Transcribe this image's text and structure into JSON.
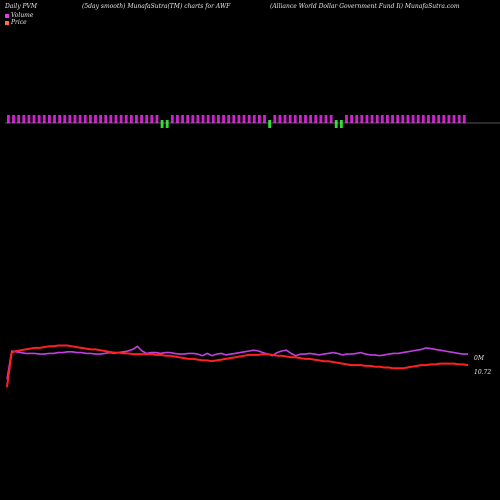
{
  "header": {
    "left": "Daily PVM",
    "middle": "(5day smooth) MunafaSutra(TM) charts for AWF",
    "right": "(Alliance World Dollar Government Fund Ii) MunafaSutra.com"
  },
  "legend": {
    "items": [
      {
        "label": "Volume",
        "color": "#e040e0"
      },
      {
        "label": "Price",
        "color": "#ff6a5a"
      }
    ]
  },
  "colors": {
    "up_bar": "#d020d0",
    "down_bar": "#30e030",
    "volume_line": "#c040e0",
    "price_line": "#ff2020",
    "baseline": "#aaaaaa"
  },
  "chart_data": {
    "type": "line",
    "title": "",
    "xlabel": "",
    "ylabel": "",
    "bars": {
      "direction": [
        1,
        1,
        1,
        1,
        1,
        1,
        1,
        1,
        1,
        1,
        1,
        1,
        1,
        1,
        1,
        1,
        1,
        1,
        1,
        1,
        1,
        1,
        1,
        1,
        1,
        1,
        1,
        1,
        1,
        1,
        -1,
        -1,
        1,
        1,
        1,
        1,
        1,
        1,
        1,
        1,
        1,
        1,
        1,
        1,
        1,
        1,
        1,
        1,
        1,
        1,
        1,
        -1,
        1,
        1,
        1,
        1,
        1,
        1,
        1,
        1,
        1,
        1,
        1,
        1,
        -1,
        -1,
        1,
        1,
        1,
        1,
        1,
        1,
        1,
        1,
        1,
        1,
        1,
        1,
        1,
        1,
        1,
        1,
        1,
        1,
        1,
        1,
        1,
        1,
        1,
        1
      ],
      "height": [
        3,
        3,
        3,
        3,
        3,
        3,
        3,
        3,
        3,
        3,
        3,
        3,
        3,
        3,
        3,
        3,
        3,
        3,
        3,
        3,
        3,
        3,
        3,
        3,
        3,
        3,
        3,
        3,
        3,
        3,
        3,
        3,
        3,
        3,
        3,
        3,
        3,
        3,
        3,
        3,
        3,
        3,
        3,
        3,
        3,
        3,
        3,
        3,
        3,
        3,
        3,
        3,
        3,
        3,
        3,
        3,
        3,
        3,
        3,
        3,
        3,
        3,
        3,
        3,
        3,
        3,
        3,
        3,
        3,
        3,
        3,
        3,
        3,
        3,
        3,
        3,
        3,
        3,
        3,
        3,
        3,
        3,
        3,
        3,
        3,
        3,
        3,
        3,
        3,
        3
      ]
    },
    "series": [
      {
        "name": "Volume",
        "values": [
          20,
          56,
          55,
          54,
          53,
          53,
          53,
          52,
          52,
          53,
          53,
          54,
          54,
          55,
          55,
          54,
          54,
          53,
          53,
          52,
          52,
          53,
          54,
          53,
          54,
          55,
          56,
          58,
          62,
          56,
          53,
          54,
          54,
          53,
          54,
          54,
          53,
          52,
          52,
          53,
          53,
          52,
          50,
          53,
          50,
          52,
          53,
          51,
          52,
          53,
          54,
          55,
          56,
          57,
          56,
          54,
          52,
          50,
          54,
          56,
          57,
          53,
          50,
          52,
          52,
          53,
          52,
          51,
          52,
          53,
          54,
          53,
          51,
          52,
          52,
          53,
          54,
          52,
          51,
          51,
          50,
          51,
          52,
          53,
          53,
          54,
          55,
          56,
          57,
          58,
          60,
          59,
          58,
          57,
          56,
          55,
          54,
          53,
          52,
          52
        ],
        "color": "#c040e0"
      },
      {
        "name": "Price",
        "values": [
          10,
          54,
          56,
          57,
          58,
          59,
          60,
          60,
          61,
          62,
          62,
          63,
          63,
          63,
          62,
          61,
          60,
          59,
          58,
          58,
          57,
          56,
          55,
          54,
          54,
          53,
          53,
          52,
          52,
          52,
          52,
          52,
          51,
          51,
          50,
          50,
          49,
          48,
          47,
          46,
          46,
          45,
          44,
          44,
          43,
          44,
          45,
          46,
          47,
          48,
          49,
          50,
          51,
          51,
          51,
          52,
          52,
          51,
          50,
          50,
          49,
          48,
          48,
          47,
          46,
          46,
          45,
          44,
          43,
          43,
          42,
          41,
          40,
          39,
          38,
          38,
          38,
          37,
          37,
          36,
          36,
          35,
          35,
          34,
          34,
          34,
          35,
          36,
          37,
          38,
          38,
          39,
          39,
          40,
          40,
          40,
          40,
          39,
          39,
          38
        ],
        "color": "#ff2020"
      }
    ],
    "annotations": [
      {
        "text": "0M",
        "series": "Volume"
      },
      {
        "text": "10.72",
        "series": "Price"
      }
    ]
  }
}
